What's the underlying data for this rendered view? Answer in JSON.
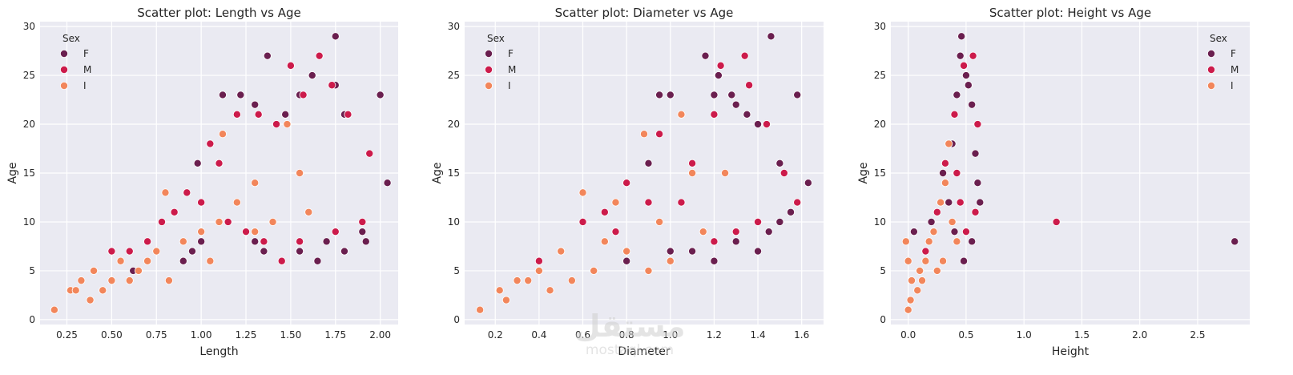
{
  "legend": {
    "title": "Sex",
    "entries": [
      {
        "label": "F",
        "color": "#6a1f4f"
      },
      {
        "label": "M",
        "color": "#cc1b4b"
      },
      {
        "label": "I",
        "color": "#f2865b"
      }
    ]
  },
  "watermark": {
    "text": "مستقل",
    "sub": "mostaql.com"
  },
  "chart_data": [
    {
      "type": "scatter",
      "title": "Scatter plot: Length vs Age",
      "xlabel": "Length",
      "ylabel": "Age",
      "xlim": [
        0.1,
        2.1
      ],
      "ylim": [
        -0.5,
        30.5
      ],
      "xticks": [
        0.25,
        0.5,
        0.75,
        1.0,
        1.25,
        1.5,
        1.75,
        2.0
      ],
      "xtick_labels": [
        "0.25",
        "0.50",
        "0.75",
        "1.00",
        "1.25",
        "1.50",
        "1.75",
        "2.00"
      ],
      "yticks": [
        0,
        5,
        10,
        15,
        20,
        25,
        30
      ],
      "grid": true,
      "legend_position": "top-left",
      "series": [
        {
          "name": "F",
          "color": "#6a1f4f",
          "points": [
            [
              0.62,
              5
            ],
            [
              0.9,
              6
            ],
            [
              0.95,
              7
            ],
            [
              1.0,
              8
            ],
            [
              0.98,
              16
            ],
            [
              1.12,
              23
            ],
            [
              1.22,
              23
            ],
            [
              1.3,
              22
            ],
            [
              1.37,
              27
            ],
            [
              1.47,
              21
            ],
            [
              1.55,
              23
            ],
            [
              1.62,
              25
            ],
            [
              1.75,
              29
            ],
            [
              1.75,
              24
            ],
            [
              1.8,
              21
            ],
            [
              2.0,
              23
            ],
            [
              2.04,
              14
            ],
            [
              1.65,
              6
            ],
            [
              1.8,
              7
            ],
            [
              1.92,
              8
            ],
            [
              1.35,
              7
            ],
            [
              1.45,
              6
            ],
            [
              1.55,
              7
            ],
            [
              1.7,
              8
            ],
            [
              1.9,
              9
            ],
            [
              1.3,
              8
            ]
          ]
        },
        {
          "name": "M",
          "color": "#cc1b4b",
          "points": [
            [
              0.5,
              7
            ],
            [
              0.6,
              7
            ],
            [
              0.7,
              8
            ],
            [
              0.78,
              10
            ],
            [
              0.85,
              11
            ],
            [
              0.92,
              13
            ],
            [
              1.05,
              18
            ],
            [
              1.1,
              16
            ],
            [
              1.2,
              21
            ],
            [
              1.32,
              21
            ],
            [
              1.42,
              20
            ],
            [
              1.5,
              26
            ],
            [
              1.57,
              23
            ],
            [
              1.66,
              27
            ],
            [
              1.73,
              24
            ],
            [
              1.82,
              21
            ],
            [
              1.94,
              17
            ],
            [
              1.9,
              10
            ],
            [
              1.75,
              9
            ],
            [
              1.55,
              8
            ],
            [
              1.45,
              6
            ],
            [
              1.35,
              8
            ],
            [
              1.25,
              9
            ],
            [
              1.15,
              10
            ],
            [
              1.0,
              12
            ]
          ]
        },
        {
          "name": "I",
          "color": "#f2865b",
          "points": [
            [
              0.18,
              1
            ],
            [
              0.27,
              3
            ],
            [
              0.3,
              3
            ],
            [
              0.33,
              4
            ],
            [
              0.38,
              2
            ],
            [
              0.4,
              5
            ],
            [
              0.45,
              3
            ],
            [
              0.5,
              4
            ],
            [
              0.55,
              6
            ],
            [
              0.6,
              4
            ],
            [
              0.65,
              5
            ],
            [
              0.7,
              6
            ],
            [
              0.75,
              7
            ],
            [
              0.8,
              13
            ],
            [
              0.82,
              4
            ],
            [
              0.9,
              8
            ],
            [
              1.0,
              9
            ],
            [
              1.05,
              6
            ],
            [
              1.1,
              10
            ],
            [
              1.12,
              19
            ],
            [
              1.2,
              12
            ],
            [
              1.3,
              9
            ],
            [
              1.4,
              10
            ],
            [
              1.48,
              20
            ],
            [
              1.55,
              15
            ],
            [
              1.6,
              11
            ],
            [
              1.3,
              14
            ]
          ]
        }
      ]
    },
    {
      "type": "scatter",
      "title": "Scatter plot: Diameter vs Age",
      "xlabel": "Diameter",
      "ylabel": "Age",
      "xlim": [
        0.06,
        1.7
      ],
      "ylim": [
        -0.5,
        30.5
      ],
      "xticks": [
        0.2,
        0.4,
        0.6,
        0.8,
        1.0,
        1.2,
        1.4,
        1.6
      ],
      "xtick_labels": [
        "0.2",
        "0.4",
        "0.6",
        "0.8",
        "1.0",
        "1.2",
        "1.4",
        "1.6"
      ],
      "yticks": [
        0,
        5,
        10,
        15,
        20,
        25,
        30
      ],
      "grid": true,
      "legend_position": "top-left",
      "series": [
        {
          "name": "F",
          "color": "#6a1f4f",
          "points": [
            [
              0.8,
              6
            ],
            [
              0.9,
              16
            ],
            [
              0.95,
              23
            ],
            [
              1.0,
              23
            ],
            [
              1.16,
              27
            ],
            [
              1.2,
              23
            ],
            [
              1.22,
              25
            ],
            [
              1.28,
              23
            ],
            [
              1.3,
              22
            ],
            [
              1.35,
              21
            ],
            [
              1.4,
              20
            ],
            [
              1.46,
              29
            ],
            [
              1.5,
              16
            ],
            [
              1.58,
              23
            ],
            [
              1.63,
              14
            ],
            [
              1.55,
              11
            ],
            [
              1.5,
              10
            ],
            [
              1.2,
              6
            ],
            [
              1.3,
              8
            ],
            [
              1.4,
              7
            ],
            [
              1.45,
              9
            ],
            [
              1.1,
              7
            ],
            [
              1.0,
              7
            ],
            [
              0.7,
              8
            ]
          ]
        },
        {
          "name": "M",
          "color": "#cc1b4b",
          "points": [
            [
              0.4,
              6
            ],
            [
              0.5,
              7
            ],
            [
              0.6,
              10
            ],
            [
              0.7,
              11
            ],
            [
              0.8,
              14
            ],
            [
              0.95,
              19
            ],
            [
              1.1,
              16
            ],
            [
              1.2,
              21
            ],
            [
              1.23,
              26
            ],
            [
              1.34,
              27
            ],
            [
              1.36,
              24
            ],
            [
              1.44,
              20
            ],
            [
              1.52,
              15
            ],
            [
              1.58,
              12
            ],
            [
              1.4,
              10
            ],
            [
              1.3,
              9
            ],
            [
              1.2,
              8
            ],
            [
              1.05,
              12
            ],
            [
              0.9,
              12
            ],
            [
              0.75,
              9
            ]
          ]
        },
        {
          "name": "I",
          "color": "#f2865b",
          "points": [
            [
              0.13,
              1
            ],
            [
              0.25,
              2
            ],
            [
              0.22,
              3
            ],
            [
              0.3,
              4
            ],
            [
              0.35,
              4
            ],
            [
              0.4,
              5
            ],
            [
              0.45,
              3
            ],
            [
              0.5,
              7
            ],
            [
              0.55,
              4
            ],
            [
              0.6,
              13
            ],
            [
              0.65,
              5
            ],
            [
              0.7,
              8
            ],
            [
              0.75,
              12
            ],
            [
              0.8,
              7
            ],
            [
              0.88,
              19
            ],
            [
              0.95,
              10
            ],
            [
              1.05,
              21
            ],
            [
              1.1,
              15
            ],
            [
              1.15,
              9
            ],
            [
              1.25,
              15
            ],
            [
              1.0,
              6
            ],
            [
              0.9,
              5
            ]
          ]
        }
      ]
    },
    {
      "type": "scatter",
      "title": "Scatter plot: Height vs Age",
      "xlabel": "Height",
      "ylabel": "Age",
      "xlim": [
        -0.15,
        2.95
      ],
      "ylim": [
        -0.5,
        30.5
      ],
      "xticks": [
        0.0,
        0.5,
        1.0,
        1.5,
        2.0,
        2.5
      ],
      "xtick_labels": [
        "0.0",
        "0.5",
        "1.0",
        "1.5",
        "2.0",
        "2.5"
      ],
      "yticks": [
        0,
        5,
        10,
        15,
        20,
        25,
        30
      ],
      "grid": true,
      "legend_position": "top-right",
      "series": [
        {
          "name": "F",
          "color": "#6a1f4f",
          "points": [
            [
              0.05,
              9
            ],
            [
              0.2,
              10
            ],
            [
              0.3,
              15
            ],
            [
              0.38,
              18
            ],
            [
              0.42,
              23
            ],
            [
              0.46,
              29
            ],
            [
              0.45,
              27
            ],
            [
              0.5,
              25
            ],
            [
              0.52,
              24
            ],
            [
              0.55,
              22
            ],
            [
              0.58,
              17
            ],
            [
              0.6,
              14
            ],
            [
              0.62,
              12
            ],
            [
              0.55,
              8
            ],
            [
              0.48,
              6
            ],
            [
              0.4,
              9
            ],
            [
              0.35,
              12
            ],
            [
              2.82,
              8
            ]
          ]
        },
        {
          "name": "M",
          "color": "#cc1b4b",
          "points": [
            [
              0.15,
              7
            ],
            [
              0.25,
              11
            ],
            [
              0.32,
              16
            ],
            [
              0.4,
              21
            ],
            [
              0.48,
              26
            ],
            [
              0.56,
              27
            ],
            [
              0.6,
              20
            ],
            [
              0.58,
              11
            ],
            [
              0.5,
              9
            ],
            [
              0.45,
              12
            ],
            [
              0.42,
              15
            ],
            [
              1.28,
              10
            ]
          ]
        },
        {
          "name": "I",
          "color": "#f2865b",
          "points": [
            [
              0.0,
              1
            ],
            [
              0.02,
              2
            ],
            [
              0.03,
              4
            ],
            [
              0.0,
              6
            ],
            [
              -0.02,
              8
            ],
            [
              0.08,
              3
            ],
            [
              0.1,
              5
            ],
            [
              0.12,
              4
            ],
            [
              0.15,
              6
            ],
            [
              0.18,
              8
            ],
            [
              0.22,
              9
            ],
            [
              0.25,
              5
            ],
            [
              0.28,
              12
            ],
            [
              0.32,
              14
            ],
            [
              0.35,
              18
            ],
            [
              0.38,
              10
            ],
            [
              0.42,
              8
            ],
            [
              0.3,
              6
            ]
          ]
        }
      ]
    }
  ]
}
